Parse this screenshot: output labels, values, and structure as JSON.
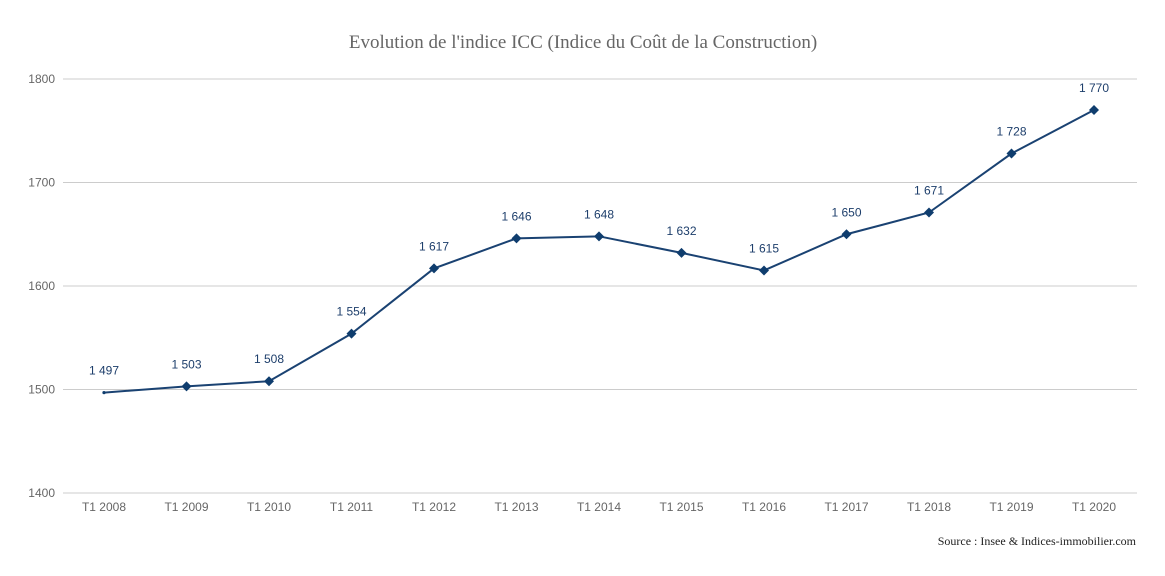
{
  "chart_data": {
    "type": "line",
    "title": "Evolution de l'indice ICC (Indice du Coût de la Construction)",
    "xlabel": "",
    "ylabel": "",
    "categories": [
      "T1 2008",
      "T1 2009",
      "T1 2010",
      "T1 2011",
      "T1 2012",
      "T1 2013",
      "T1 2014",
      "T1 2015",
      "T1 2016",
      "T1 2017",
      "T1 2018",
      "T1 2019",
      "T1 2020"
    ],
    "series": [
      {
        "values": [
          1497,
          1503,
          1508,
          1554,
          1617,
          1646,
          1648,
          1632,
          1615,
          1650,
          1671,
          1728,
          1770
        ],
        "labels": [
          "1 497",
          "1 503",
          "1 508",
          "1 554",
          "1 617",
          "1 646",
          "1 648",
          "1 632",
          "1 615",
          "1 650",
          "1 671",
          "1 728",
          "1 770"
        ]
      }
    ],
    "ylim": [
      1400,
      1800
    ],
    "yticks": [
      "1400",
      "1500",
      "1600",
      "1700",
      "1800"
    ],
    "grid": true,
    "legend": "none",
    "colors": {
      "line": "#1a4272",
      "marker": "#0f3d6e",
      "data_label": "#1d3e6b",
      "grid": "#cccccc"
    }
  },
  "source": "Source : Insee & Indices-immobilier.com"
}
